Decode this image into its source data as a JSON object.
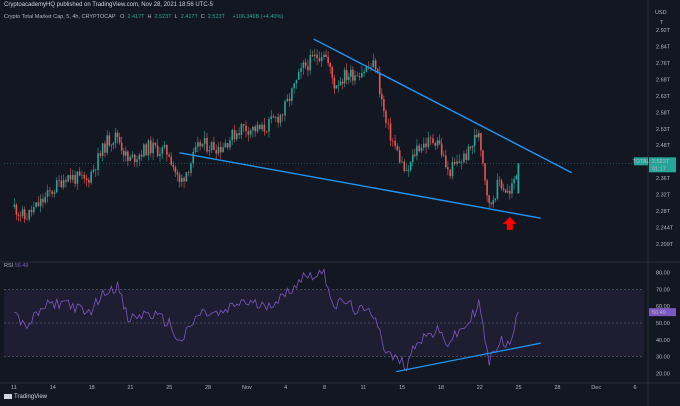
{
  "header": {
    "publisher": "CryptoacademyHQ published on TradingView.com, Nov 28, 2021 18:56 UTC-5",
    "symbol": "Crypto Total Market Cap, 5, 4h, CRYPTOCAP",
    "ohlc": [
      {
        "k": "O",
        "v": "2.417T"
      },
      {
        "k": "H",
        "v": "2.523T"
      },
      {
        "k": "L",
        "v": "2.417T"
      },
      {
        "k": "C",
        "v": "2.523T"
      }
    ],
    "change": "+106.346B (+4.40%)"
  },
  "price_badge": {
    "symbol": "TOTAL",
    "price": "2.523T",
    "countdown": "01:17"
  },
  "rsi_label": {
    "name": "RSI",
    "value": "56.49"
  },
  "logo": "TradingView",
  "colors": {
    "bg": "#131722",
    "up": "#26a69a",
    "down": "#ef5350",
    "trend": "#2196f3",
    "rsi": "#7e57c2",
    "arrow": "#ff0000"
  },
  "chart_data": [
    {
      "type": "candlestick",
      "title": "Crypto Total Market Cap, 5, 4h, CRYPTOCAP",
      "y_unit": "T (USD)",
      "price_tick_labels": [
        "2.92T",
        "2.84T",
        "2.76T",
        "2.68T",
        "2.63T",
        "2.58T",
        "2.53T",
        "2.48T",
        "2.41T",
        "2.36T",
        "2.32T",
        "2.28T",
        "2.244T",
        "2.209T"
      ],
      "x_tick_labels": [
        "11",
        "14",
        "18",
        "21",
        "25",
        "28",
        "Nov",
        "4",
        "8",
        "11",
        "15",
        "18",
        "22",
        "25",
        "28",
        "Dec",
        "6"
      ],
      "price_path": [
        {
          "x": "2021-10-11",
          "y": 2.37
        },
        {
          "x": "2021-10-12",
          "y": 2.33
        },
        {
          "x": "2021-10-14",
          "y": 2.4
        },
        {
          "x": "2021-10-16",
          "y": 2.48
        },
        {
          "x": "2021-10-18",
          "y": 2.46
        },
        {
          "x": "2021-10-20",
          "y": 2.6
        },
        {
          "x": "2021-10-21",
          "y": 2.62
        },
        {
          "x": "2021-10-22",
          "y": 2.53
        },
        {
          "x": "2021-10-24",
          "y": 2.58
        },
        {
          "x": "2021-10-26",
          "y": 2.56
        },
        {
          "x": "2021-10-27",
          "y": 2.45
        },
        {
          "x": "2021-10-29",
          "y": 2.59
        },
        {
          "x": "2021-10-31",
          "y": 2.58
        },
        {
          "x": "2021-11-02",
          "y": 2.65
        },
        {
          "x": "2021-11-04",
          "y": 2.64
        },
        {
          "x": "2021-11-06",
          "y": 2.7
        },
        {
          "x": "2021-11-08",
          "y": 2.86
        },
        {
          "x": "2021-11-10",
          "y": 2.92
        },
        {
          "x": "2021-11-11",
          "y": 2.8
        },
        {
          "x": "2021-11-12",
          "y": 2.83
        },
        {
          "x": "2021-11-13",
          "y": 2.84
        },
        {
          "x": "2021-11-15",
          "y": 2.87
        },
        {
          "x": "2021-11-16",
          "y": 2.66
        },
        {
          "x": "2021-11-18",
          "y": 2.48
        },
        {
          "x": "2021-11-19",
          "y": 2.58
        },
        {
          "x": "2021-11-21",
          "y": 2.61
        },
        {
          "x": "2021-11-22",
          "y": 2.49
        },
        {
          "x": "2021-11-24",
          "y": 2.56
        },
        {
          "x": "2021-11-25",
          "y": 2.64
        },
        {
          "x": "2021-11-26",
          "y": 2.37
        },
        {
          "x": "2021-11-27",
          "y": 2.46
        },
        {
          "x": "2021-11-28",
          "y": 2.41
        },
        {
          "x": "2021-11-28T20:00",
          "y": 2.523
        }
      ],
      "trendlines": [
        {
          "name": "upper",
          "from": {
            "x": "2021-11-09",
            "y": 2.96
          },
          "to": {
            "x": "2021-12-04",
            "y": 2.49
          }
        },
        {
          "name": "lower",
          "from": {
            "x": "2021-10-27",
            "y": 2.56
          },
          "to": {
            "x": "2021-12-01",
            "y": 2.33
          }
        }
      ],
      "arrow_marker": {
        "x": "2021-11-28",
        "y": 2.31,
        "direction": "up"
      }
    },
    {
      "type": "line",
      "title": "RSI 56.49",
      "y_tick_labels": [
        "80.00",
        "70.00",
        "60.00",
        "50.00",
        "40.00",
        "30.00",
        "20.00"
      ],
      "ylim": [
        16,
        84
      ],
      "bands": [
        70,
        50,
        30
      ],
      "series": [
        {
          "values": [
            {
              "x": "2021-10-11",
              "y": 58
            },
            {
              "x": "2021-10-12",
              "y": 47
            },
            {
              "x": "2021-10-14",
              "y": 60
            },
            {
              "x": "2021-10-16",
              "y": 63
            },
            {
              "x": "2021-10-18",
              "y": 55
            },
            {
              "x": "2021-10-20",
              "y": 70
            },
            {
              "x": "2021-10-21",
              "y": 72
            },
            {
              "x": "2021-10-22",
              "y": 52
            },
            {
              "x": "2021-10-24",
              "y": 56
            },
            {
              "x": "2021-10-26",
              "y": 50
            },
            {
              "x": "2021-10-27",
              "y": 38
            },
            {
              "x": "2021-10-29",
              "y": 56
            },
            {
              "x": "2021-10-31",
              "y": 55
            },
            {
              "x": "2021-11-02",
              "y": 63
            },
            {
              "x": "2021-11-04",
              "y": 60
            },
            {
              "x": "2021-11-06",
              "y": 65
            },
            {
              "x": "2021-11-08",
              "y": 78
            },
            {
              "x": "2021-11-10",
              "y": 80
            },
            {
              "x": "2021-11-11",
              "y": 60
            },
            {
              "x": "2021-11-12",
              "y": 63
            },
            {
              "x": "2021-11-13",
              "y": 58
            },
            {
              "x": "2021-11-15",
              "y": 55
            },
            {
              "x": "2021-11-16",
              "y": 32
            },
            {
              "x": "2021-11-18",
              "y": 25
            },
            {
              "x": "2021-11-19",
              "y": 40
            },
            {
              "x": "2021-11-21",
              "y": 45
            },
            {
              "x": "2021-11-22",
              "y": 38
            },
            {
              "x": "2021-11-24",
              "y": 50
            },
            {
              "x": "2021-11-25",
              "y": 62
            },
            {
              "x": "2021-11-26",
              "y": 26
            },
            {
              "x": "2021-11-27",
              "y": 40
            },
            {
              "x": "2021-11-28",
              "y": 36
            },
            {
              "x": "2021-11-28T20:00",
              "y": 56.49
            }
          ]
        }
      ],
      "trendline": {
        "from": {
          "x": "2021-11-17",
          "y": 21
        },
        "to": {
          "x": "2021-12-01",
          "y": 38
        }
      }
    }
  ]
}
